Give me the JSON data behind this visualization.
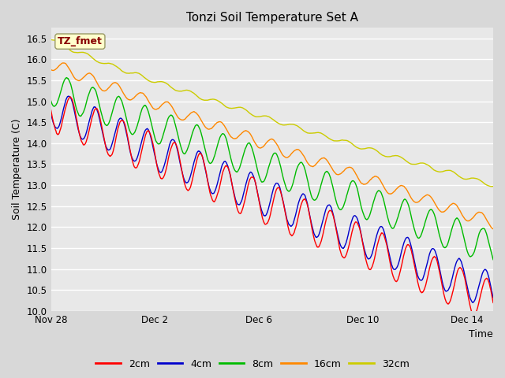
{
  "title": "Tonzi Soil Temperature Set A",
  "xlabel": "Time",
  "ylabel": "Soil Temperature (C)",
  "ylim": [
    10.0,
    16.75
  ],
  "yticks": [
    10.0,
    10.5,
    11.0,
    11.5,
    12.0,
    12.5,
    13.0,
    13.5,
    14.0,
    14.5,
    15.0,
    15.5,
    16.0,
    16.5
  ],
  "colors": {
    "2cm": "#ff0000",
    "4cm": "#0000cc",
    "8cm": "#00bb00",
    "16cm": "#ff8800",
    "32cm": "#cccc00"
  },
  "legend_labels": [
    "2cm",
    "4cm",
    "8cm",
    "16cm",
    "32cm"
  ],
  "annotation": "TZ_fmet",
  "annotation_color": "#880000",
  "annotation_bg": "#ffffcc",
  "n_points": 2000,
  "end_day": 17.0,
  "xtick_positions": [
    0,
    4,
    8,
    12,
    16
  ],
  "xtick_labels": [
    "Nov 28",
    "Dec 2",
    "Dec 6",
    "Dec 10",
    "Dec 14"
  ],
  "linewidth": 1.0,
  "fig_facecolor": "#d8d8d8",
  "ax_facecolor": "#e8e8e8"
}
